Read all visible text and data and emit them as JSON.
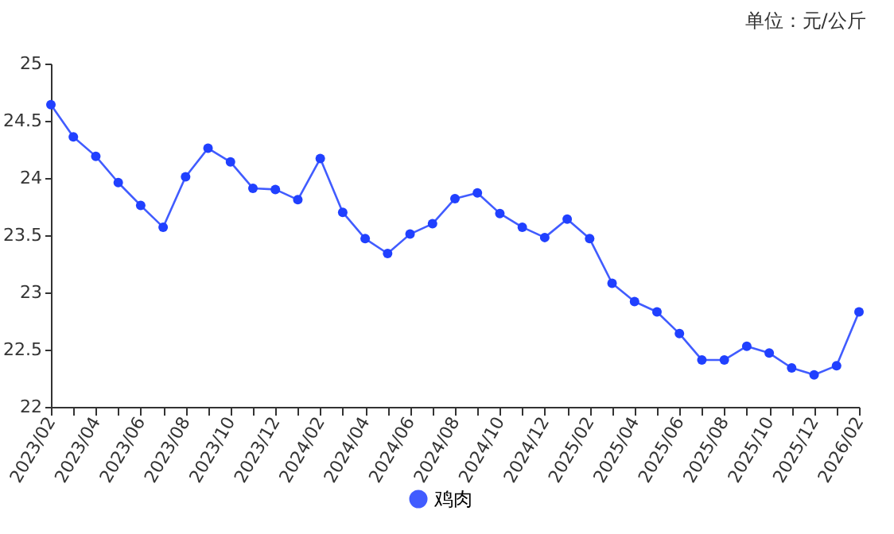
{
  "chart_data": {
    "type": "line",
    "title": "单位：元/公斤",
    "categories": [
      "2023/02",
      null,
      "2023/04",
      null,
      "2023/06",
      null,
      "2023/08",
      null,
      "2023/10",
      null,
      "2023/12",
      null,
      "2024/02",
      null,
      "2024/04",
      null,
      "2024/06",
      null,
      "2024/08",
      null,
      "2024/10",
      null,
      "2024/12",
      null,
      "2025/02",
      null,
      "2025/04",
      null,
      "2025/06",
      null,
      "2025/08",
      null,
      "2025/10",
      null,
      "2025/12",
      null,
      "2026/02"
    ],
    "series": [
      {
        "name": "鸡肉",
        "color": "#2040ff",
        "values": [
          24.64,
          24.36,
          24.19,
          23.96,
          23.76,
          23.57,
          24.01,
          24.26,
          24.14,
          23.91,
          23.9,
          23.81,
          24.17,
          23.7,
          23.47,
          23.34,
          23.51,
          23.6,
          23.82,
          23.87,
          23.69,
          23.57,
          23.48,
          23.64,
          23.47,
          23.08,
          22.92,
          22.83,
          22.64,
          22.41,
          22.41,
          22.53,
          22.47,
          22.34,
          22.28,
          22.36,
          22.83
        ]
      }
    ],
    "ylim": [
      22,
      25
    ],
    "yticks": [
      22,
      22.5,
      23,
      23.5,
      24,
      24.5,
      25
    ],
    "grid": false,
    "legend": "bottom",
    "marker": "circle",
    "line_style": "solid"
  }
}
